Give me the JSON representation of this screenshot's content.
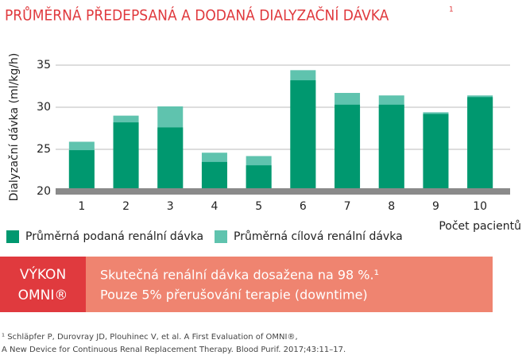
{
  "chart_data": {
    "type": "bar",
    "title": "PRŮMĚRNÁ PŘEDEPSANÁ A DODANÁ DIALYZAČNÍ DÁVKA",
    "title_note": "1",
    "y_label": "Dialyzační dávka (ml/kg/h)",
    "x_label": "Počet pacientů",
    "categories": [
      "1",
      "2",
      "3",
      "4",
      "5",
      "6",
      "7",
      "8",
      "9",
      "10"
    ],
    "series": [
      {
        "name": "Průměrná podaná renální dávka",
        "color": "#00986f",
        "values": [
          24.9,
          28.2,
          27.6,
          23.5,
          23.1,
          33.2,
          30.3,
          30.3,
          29.2,
          31.2
        ]
      },
      {
        "name": "Průměrná cílová renální dávka",
        "color": "#5fc3ae",
        "values": [
          25.9,
          29.0,
          30.1,
          24.6,
          24.2,
          34.4,
          31.7,
          31.4,
          29.4,
          31.4
        ]
      }
    ],
    "ylim": [
      20,
      35
    ],
    "yticks": [
      20,
      25,
      30,
      35
    ],
    "grid": true,
    "badge": [
      "VÝKON",
      "OMNI®"
    ],
    "highlights": [
      "Skutečná renální dávka dosažena na 98 %.¹",
      "Pouze 5% přerušování terapie (downtime)"
    ],
    "footnote": [
      "¹ Schläpfer P, Durovray JD, Plouhinec V, et al. A First Evaluation of OMNI®,",
      "A New Device for Continuous Renal Replacement Therapy. Blood Purif. 2017;43:11–17."
    ]
  }
}
